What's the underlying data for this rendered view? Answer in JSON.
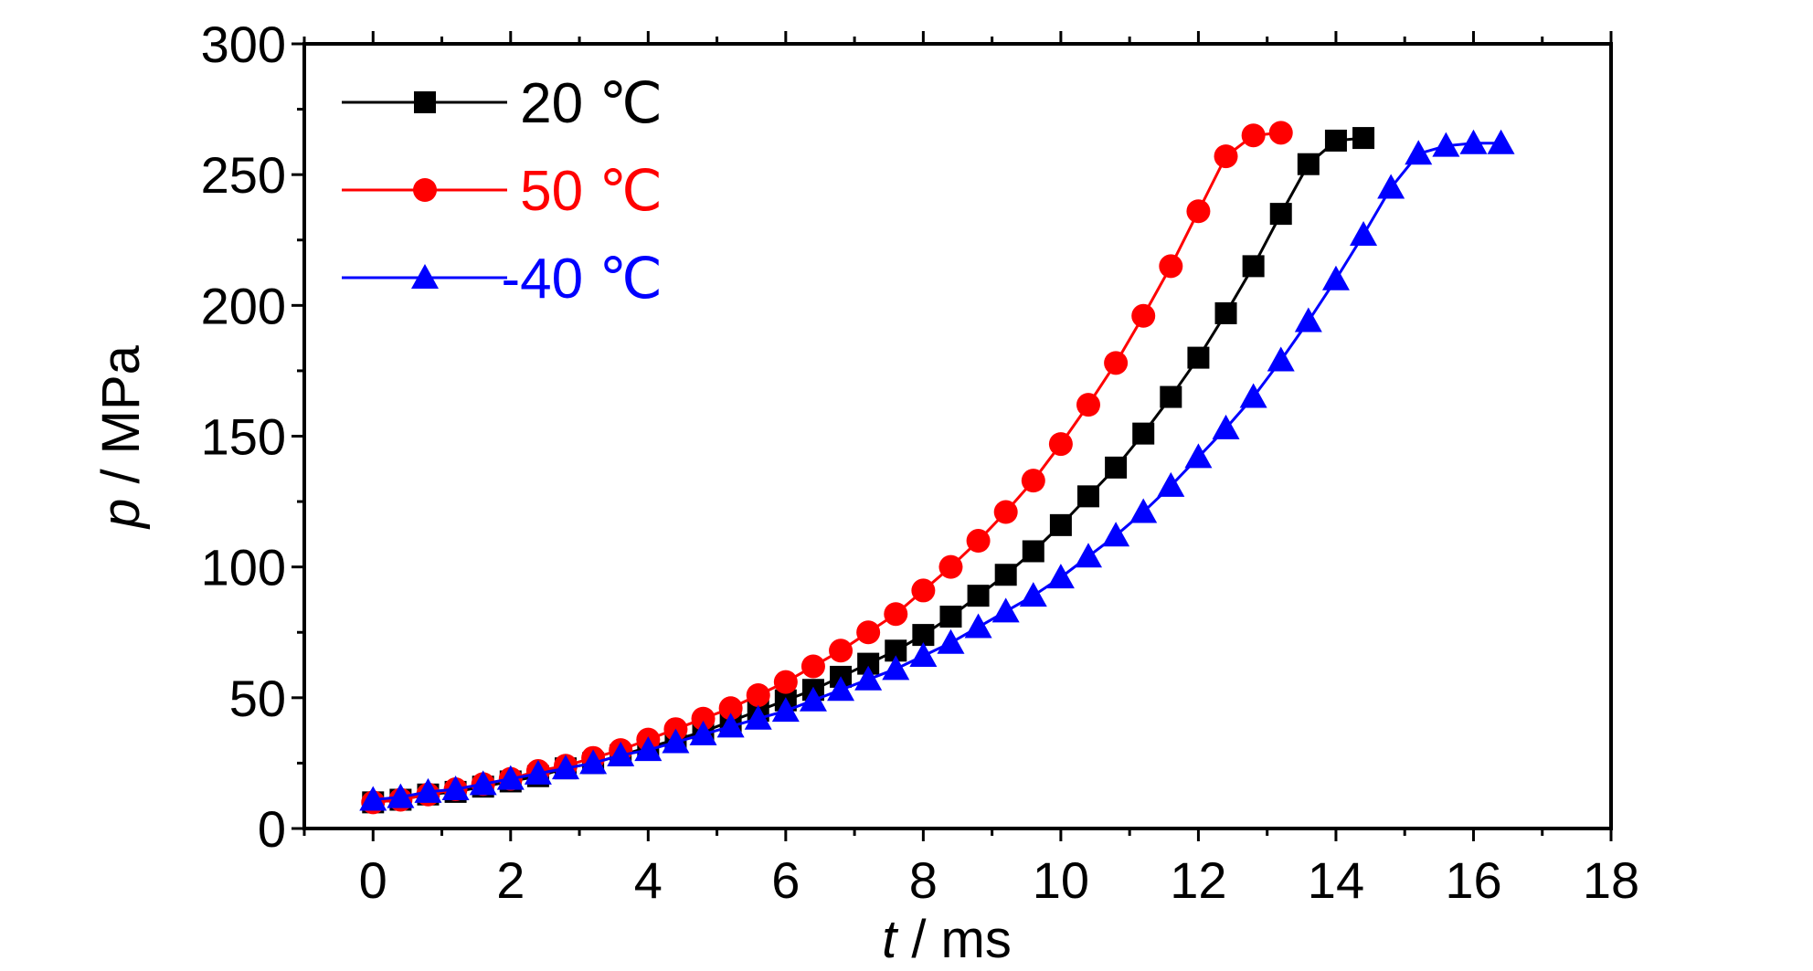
{
  "chart_data": {
    "type": "line",
    "xlabel_var": "t",
    "xlabel_unit": " / ms",
    "ylabel_var": "p",
    "ylabel_unit": " / MPa",
    "xlim": [
      -1,
      18
    ],
    "ylim": [
      0,
      300
    ],
    "xticks": [
      "0",
      "2",
      "4",
      "6",
      "8",
      "10",
      "12",
      "14",
      "16",
      "18"
    ],
    "yticks": [
      "0",
      "50",
      "100",
      "150",
      "200",
      "250",
      "300"
    ],
    "grid": false,
    "legend_position": "top-left",
    "series": [
      {
        "name": "20 ℃",
        "color": "#000000",
        "marker": "square",
        "x": [
          0,
          0.4,
          0.8,
          1.2,
          1.6,
          2.0,
          2.4,
          2.8,
          3.2,
          3.6,
          4.0,
          4.4,
          4.8,
          5.2,
          5.6,
          6.0,
          6.4,
          6.8,
          7.2,
          7.6,
          8.0,
          8.4,
          8.8,
          9.2,
          9.6,
          10.0,
          10.4,
          10.8,
          11.2,
          11.6,
          12.0,
          12.4,
          12.8,
          13.2,
          13.6,
          14.0,
          14.4
        ],
        "y": [
          10,
          11,
          13,
          14,
          16,
          18,
          20,
          23,
          25,
          28,
          31,
          34,
          37,
          41,
          45,
          49,
          53,
          58,
          63,
          68,
          74,
          81,
          89,
          97,
          106,
          116,
          127,
          138,
          151,
          165,
          180,
          197,
          215,
          235,
          254,
          263,
          264
        ]
      },
      {
        "name": "50 ℃",
        "color": "#ff0000",
        "marker": "circle",
        "x": [
          0,
          0.4,
          0.8,
          1.2,
          1.6,
          2.0,
          2.4,
          2.8,
          3.2,
          3.6,
          4.0,
          4.4,
          4.8,
          5.2,
          5.6,
          6.0,
          6.4,
          6.8,
          7.2,
          7.6,
          8.0,
          8.4,
          8.8,
          9.2,
          9.6,
          10.0,
          10.4,
          10.8,
          11.2,
          11.6,
          12.0,
          12.4,
          12.8,
          13.2
        ],
        "y": [
          10,
          11,
          13,
          15,
          17,
          19,
          22,
          24,
          27,
          30,
          34,
          38,
          42,
          46,
          51,
          56,
          62,
          68,
          75,
          82,
          91,
          100,
          110,
          121,
          133,
          147,
          162,
          178,
          196,
          215,
          236,
          257,
          265,
          266
        ]
      },
      {
        "name": "-40 ℃",
        "color": "#0000ff",
        "marker": "triangle",
        "x": [
          0,
          0.4,
          0.8,
          1.2,
          1.6,
          2.0,
          2.4,
          2.8,
          3.2,
          3.6,
          4.0,
          4.4,
          4.8,
          5.2,
          5.6,
          6.0,
          6.4,
          6.8,
          7.2,
          7.6,
          8.0,
          8.4,
          8.8,
          9.2,
          9.6,
          10.0,
          10.4,
          10.8,
          11.2,
          11.6,
          12.0,
          12.4,
          12.8,
          13.2,
          13.6,
          14.0,
          14.4,
          14.8,
          15.2,
          15.6,
          16.0,
          16.4
        ],
        "y": [
          11,
          12,
          14,
          15,
          17,
          19,
          21,
          23,
          25,
          28,
          30,
          33,
          36,
          39,
          42,
          45,
          49,
          53,
          57,
          61,
          66,
          71,
          77,
          83,
          89,
          96,
          104,
          112,
          121,
          131,
          142,
          153,
          165,
          179,
          194,
          210,
          227,
          245,
          258,
          261,
          262,
          262
        ]
      }
    ]
  }
}
